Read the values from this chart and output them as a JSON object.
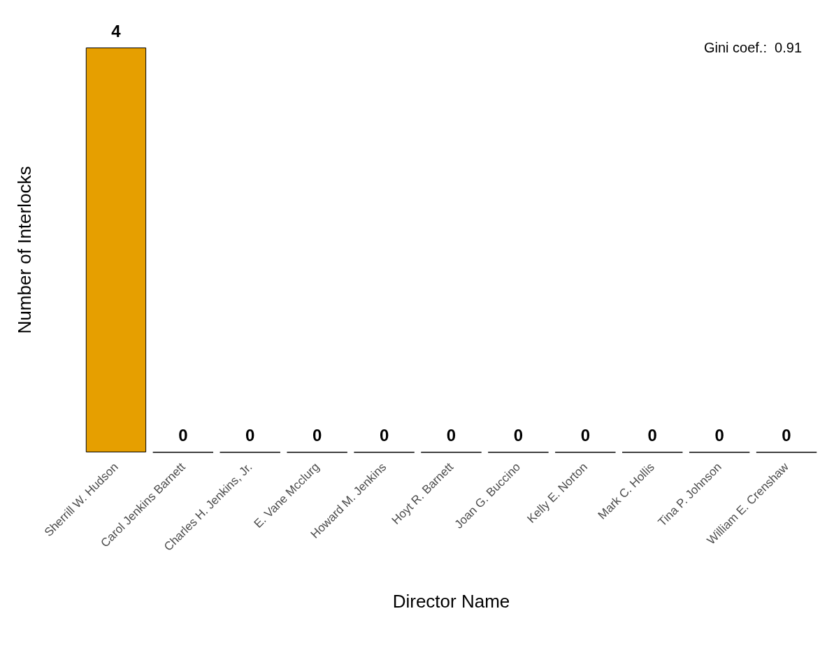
{
  "chart_data": {
    "type": "bar",
    "categories": [
      "Sherrill W. Hudson",
      "Carol Jenkins Barnett",
      "Charles H. Jenkins, Jr.",
      "E. Vane Mcclurg",
      "Howard M. Jenkins",
      "Hoyt R. Barnett",
      "Joan G. Buccino",
      "Kelly E. Norton",
      "Mark C. Hollis",
      "Tina P. Johnson",
      "William E. Crenshaw"
    ],
    "values": [
      4,
      0,
      0,
      0,
      0,
      0,
      0,
      0,
      0,
      0,
      0
    ],
    "color": "#e69f00",
    "xlabel": "Director Name",
    "ylabel": "Number of Interlocks",
    "annotations": [
      "Gini coef.:  0.91"
    ],
    "data_labels": true,
    "grid": false
  }
}
